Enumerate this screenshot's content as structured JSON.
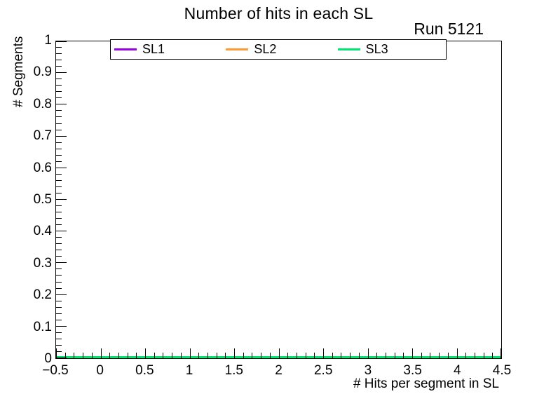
{
  "chart_data": {
    "type": "line",
    "title": "Number of hits in each SL",
    "corner_label": "Run 5121",
    "xlabel": "# Hits per segment in SL",
    "ylabel": "# Segments",
    "xlim": [
      -0.5,
      4.5
    ],
    "ylim": [
      0,
      1
    ],
    "x_tick_labels": [
      "−0.5",
      "0",
      "0.5",
      "1",
      "1.5",
      "2",
      "2.5",
      "3",
      "3.5",
      "4",
      "4.5"
    ],
    "y_tick_labels": [
      "0",
      "0.1",
      "0.2",
      "0.3",
      "0.4",
      "0.5",
      "0.6",
      "0.7",
      "0.8",
      "0.9",
      "1"
    ],
    "x_minor_divisions": 5,
    "y_minor_divisions": 5,
    "grid": false,
    "legend_position": "top-inside",
    "frame_color": "#000000",
    "background_color": "#ffffff",
    "series": [
      {
        "name": "SL1",
        "color": "#9900e6",
        "x": [
          -0.5,
          4.5
        ],
        "y": [
          0,
          0
        ]
      },
      {
        "name": "SL2",
        "color": "#ff9933",
        "x": [
          -0.5,
          4.5
        ],
        "y": [
          0,
          0
        ]
      },
      {
        "name": "SL3",
        "color": "#00e673",
        "x": [
          -0.5,
          4.5
        ],
        "y": [
          0,
          0
        ]
      }
    ]
  }
}
